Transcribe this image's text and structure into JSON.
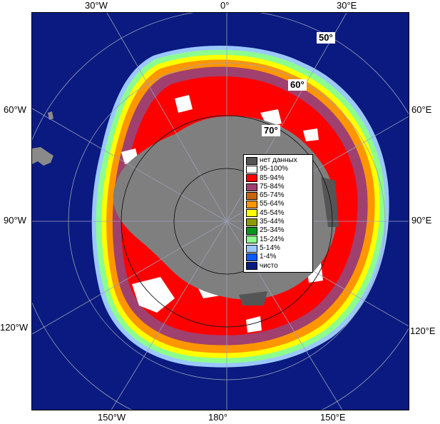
{
  "map": {
    "longitude_labels": {
      "top": [
        "30°W",
        "0°",
        "30°E"
      ],
      "left": [
        "60°W",
        "90°W",
        "120°W"
      ],
      "right": [
        "60°E",
        "90°E",
        "120°E"
      ],
      "bottom": [
        "150°W",
        "180°",
        "150°E"
      ]
    },
    "latitude_labels": [
      "50°",
      "60°",
      "70°"
    ],
    "colors": {
      "ocean": "#0a1a80",
      "land": "#7f7f7f",
      "no_data": "#555555",
      "grid": "#9aa0b8"
    }
  },
  "legend": {
    "items": [
      {
        "label": "нет данных",
        "color": "#555555"
      },
      {
        "label": "95-100%",
        "color": "#ffffff"
      },
      {
        "label": "85-94%",
        "color": "#ff0000"
      },
      {
        "label": "75-84%",
        "color": "#a0406e"
      },
      {
        "label": "65-74%",
        "color": "#c8650a"
      },
      {
        "label": "55-64%",
        "color": "#ff9600"
      },
      {
        "label": "45-54%",
        "color": "#ffff00"
      },
      {
        "label": "35-44%",
        "color": "#8c9a00"
      },
      {
        "label": "25-34%",
        "color": "#00961e"
      },
      {
        "label": "15-24%",
        "color": "#8cff8c"
      },
      {
        "label": "5-14%",
        "color": "#9bc8ff"
      },
      {
        "label": "1-4%",
        "color": "#0a5aff"
      },
      {
        "label": "чисто",
        "color": "#0a1a80"
      }
    ]
  }
}
